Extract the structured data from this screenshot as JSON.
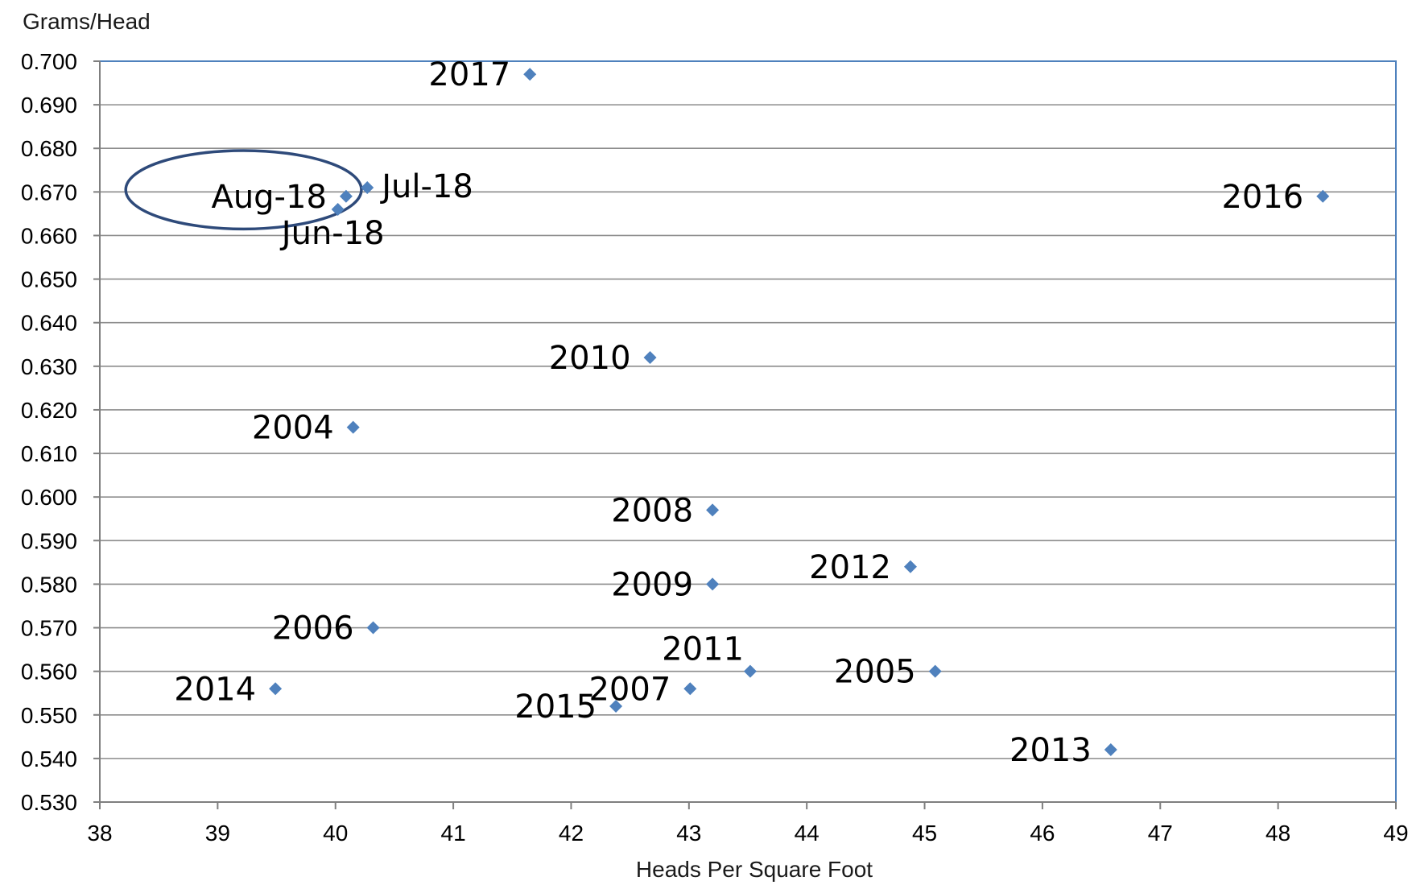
{
  "chart_data": {
    "type": "scatter",
    "title": "",
    "xlabel": "Heads Per Square Foot",
    "ylabel": "Grams/Head",
    "xlim": [
      38,
      49
    ],
    "ylim": [
      0.53,
      0.7
    ],
    "x_ticks": [
      "38",
      "39",
      "40",
      "41",
      "42",
      "43",
      "44",
      "45",
      "46",
      "47",
      "48",
      "49"
    ],
    "y_ticks": [
      "0.530",
      "0.540",
      "0.550",
      "0.560",
      "0.570",
      "0.580",
      "0.590",
      "0.600",
      "0.610",
      "0.620",
      "0.630",
      "0.640",
      "0.650",
      "0.660",
      "0.670",
      "0.680",
      "0.690",
      "0.700"
    ],
    "grid": "horizontal",
    "marker_color": "#4f81bd",
    "highlight_color": "#2e4a7a",
    "points": [
      {
        "label": "2017",
        "x": 41.65,
        "y": 0.697,
        "label_side": "left"
      },
      {
        "label": "Aug-18",
        "x": 40.09,
        "y": 0.669,
        "label_side": "left"
      },
      {
        "label": "Jul-18",
        "x": 40.27,
        "y": 0.671,
        "label_side": "right"
      },
      {
        "label": "Jun-18",
        "x": 40.02,
        "y": 0.666,
        "label_side": "below"
      },
      {
        "label": "2016",
        "x": 48.38,
        "y": 0.669,
        "label_side": "left"
      },
      {
        "label": "2010",
        "x": 42.67,
        "y": 0.632,
        "label_side": "left"
      },
      {
        "label": "2004",
        "x": 40.15,
        "y": 0.616,
        "label_side": "left"
      },
      {
        "label": "2008",
        "x": 43.2,
        "y": 0.597,
        "label_side": "left"
      },
      {
        "label": "2009",
        "x": 43.2,
        "y": 0.58,
        "label_side": "left"
      },
      {
        "label": "2012",
        "x": 44.88,
        "y": 0.584,
        "label_side": "left"
      },
      {
        "label": "2006",
        "x": 40.32,
        "y": 0.57,
        "label_side": "left"
      },
      {
        "label": "2011",
        "x": 43.52,
        "y": 0.56,
        "label_side": "above-left"
      },
      {
        "label": "2005",
        "x": 45.09,
        "y": 0.56,
        "label_side": "left"
      },
      {
        "label": "2014",
        "x": 39.49,
        "y": 0.556,
        "label_side": "left"
      },
      {
        "label": "2007",
        "x": 43.01,
        "y": 0.556,
        "label_side": "left"
      },
      {
        "label": "2015",
        "x": 42.38,
        "y": 0.552,
        "label_side": "left"
      },
      {
        "label": "2013",
        "x": 46.58,
        "y": 0.542,
        "label_side": "left"
      }
    ],
    "annotations": [
      {
        "type": "ellipse",
        "around": [
          "Aug-18",
          "Jul-18",
          "Jun-18"
        ],
        "cx": 39.22,
        "cy": 0.6705,
        "rx": 1.0,
        "ry": 0.009
      }
    ]
  }
}
